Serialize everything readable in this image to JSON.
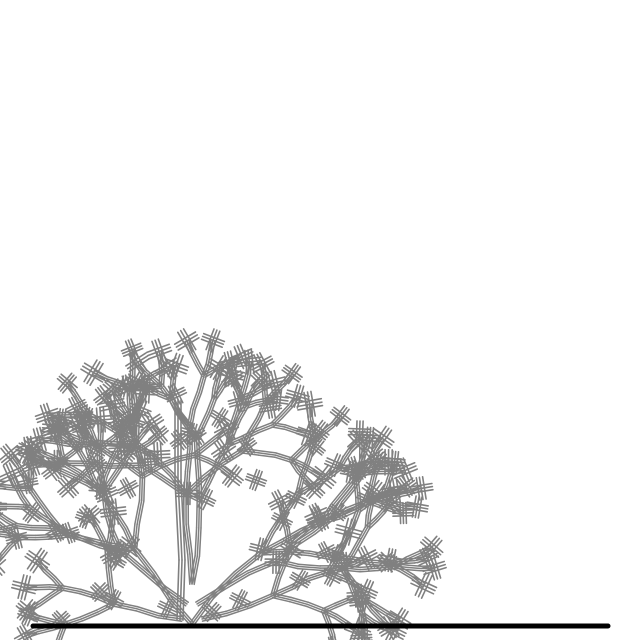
{
  "scene": {
    "background_color": "#ffffff",
    "figure_color": "#808080",
    "ground_color": "#000000",
    "description_visible_text": ""
  }
}
